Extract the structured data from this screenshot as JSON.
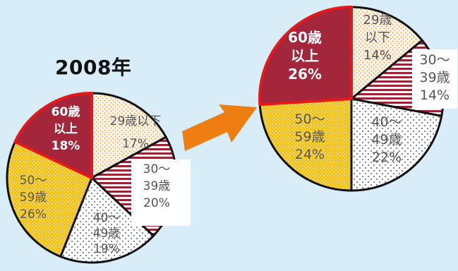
{
  "chart_data": [
    {
      "type": "pie",
      "title": "2008年",
      "categories": [
        "29歳以下",
        "30〜39歳",
        "40〜49歳",
        "50〜59歳",
        "60歳以上"
      ],
      "values": [
        17,
        20,
        19,
        26,
        18
      ],
      "labels": [
        [
          "29歳以下",
          "17%"
        ],
        [
          "30〜",
          "39歳",
          "20%"
        ],
        [
          "40〜",
          "49歳",
          "19%"
        ],
        [
          "50〜",
          "59歳",
          "26%"
        ],
        [
          "60歳",
          "以上",
          "18%"
        ]
      ],
      "highlight": "60歳以上"
    },
    {
      "type": "pie",
      "title": "",
      "categories": [
        "29歳以下",
        "30〜39歳",
        "40〜49歳",
        "50〜59歳",
        "60歳以上"
      ],
      "values": [
        14,
        14,
        22,
        24,
        26
      ],
      "labels": [
        [
          "29歳",
          "以下",
          "14%"
        ],
        [
          "30〜",
          "39歳",
          "14%"
        ],
        [
          "40〜",
          "49歳",
          "22%"
        ],
        [
          "50〜",
          "59歳",
          "24%"
        ],
        [
          "60歳",
          "以上",
          "26%"
        ]
      ],
      "highlight": "60歳以上"
    }
  ],
  "colors": {
    "background": "#d9edf9",
    "under29_dots": "#e8a550",
    "age30s_stripe": "#9b2335",
    "age40s_dots": "#2a3a4a",
    "age50s_fill": "#f2c21b",
    "age60plus_fill": "#a3263a",
    "highlight_border": "#e8171a",
    "arrow": "#ee7d12"
  },
  "arrow_icon": "arrow-right-icon"
}
